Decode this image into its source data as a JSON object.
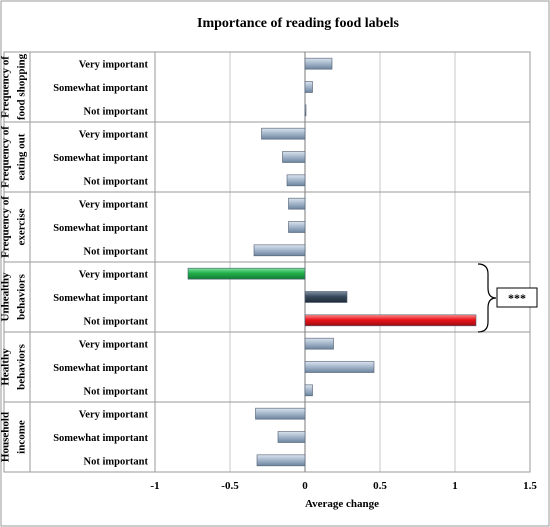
{
  "chart_data": {
    "type": "bar",
    "orientation": "horizontal",
    "title": "Importance of reading food labels",
    "xlabel": "Average change",
    "xlim": [
      -1,
      1.5
    ],
    "xticks": [
      "-1",
      "-0.5",
      "0",
      "0.5",
      "1",
      "1.5"
    ],
    "groups": [
      {
        "name": "Frequency of food shopping",
        "name_lines": [
          "Frequency of",
          "food shopping"
        ],
        "categories": [
          "Very important",
          "Somewhat important",
          "Not important"
        ],
        "values": [
          0.18,
          0.05,
          0.0
        ],
        "colors": [
          "#8fa6c0",
          "#8fa6c0",
          "#8fa6c0"
        ]
      },
      {
        "name": "Frequency of eating out",
        "name_lines": [
          "Frequency of",
          "eating out"
        ],
        "categories": [
          "Very important",
          "Somewhat important",
          "Not important"
        ],
        "values": [
          -0.29,
          -0.15,
          -0.12
        ],
        "colors": [
          "#8fa6c0",
          "#8fa6c0",
          "#8fa6c0"
        ]
      },
      {
        "name": "Frequency of exercise",
        "name_lines": [
          "Frequency of",
          "exercise"
        ],
        "categories": [
          "Very important",
          "Somewhat important",
          "Not important"
        ],
        "values": [
          -0.11,
          -0.11,
          -0.34
        ],
        "colors": [
          "#8fa6c0",
          "#8fa6c0",
          "#8fa6c0"
        ]
      },
      {
        "name": "Unhealthy behaviors",
        "name_lines": [
          "Unhealthy",
          "behaviors"
        ],
        "categories": [
          "Very important",
          "Somewhat important",
          "Not important"
        ],
        "values": [
          -0.78,
          0.28,
          1.14
        ],
        "colors": [
          "#22b14c",
          "#3a4b5e",
          "#e8141a"
        ]
      },
      {
        "name": "Healthy behaviors",
        "name_lines": [
          "Healthy",
          "behaviors"
        ],
        "categories": [
          "Very important",
          "Somewhat important",
          "Not important"
        ],
        "values": [
          0.19,
          0.46,
          0.05
        ],
        "colors": [
          "#8fa6c0",
          "#8fa6c0",
          "#8fa6c0"
        ]
      },
      {
        "name": "Household income",
        "name_lines": [
          "Household",
          "income"
        ],
        "categories": [
          "Very important",
          "Somewhat important",
          "Not important"
        ],
        "values": [
          -0.33,
          -0.18,
          -0.32
        ],
        "colors": [
          "#8fa6c0",
          "#8fa6c0",
          "#8fa6c0"
        ]
      }
    ],
    "annotations": [
      {
        "text": "***",
        "group": "Unhealthy behaviors"
      }
    ],
    "grid": true
  }
}
